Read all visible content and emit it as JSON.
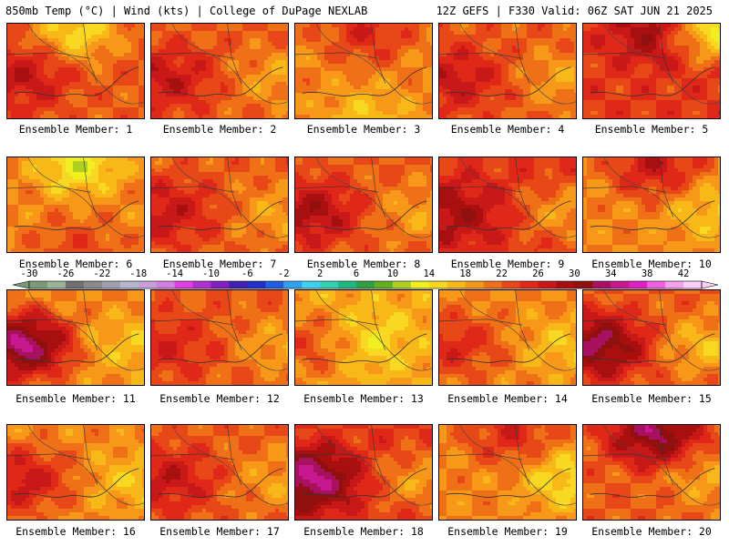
{
  "header": {
    "title_left": "850mb Temp (°C) | Wind (kts) | College of DuPage NEXLAB",
    "title_right": "12Z GEFS | F330 Valid: 06Z SAT JUN 21 2025"
  },
  "colorbar": {
    "tick_labels": [
      "-30",
      "-26",
      "-22",
      "-18",
      "-14",
      "-10",
      "-6",
      "-2",
      "2",
      "6",
      "10",
      "14",
      "18",
      "22",
      "26",
      "30",
      "34",
      "38",
      "42"
    ],
    "bins": [
      {
        "from": -30,
        "to": -28,
        "color": "#7a9a7a"
      },
      {
        "from": -28,
        "to": -26,
        "color": "#9ab39a"
      },
      {
        "from": -26,
        "to": -24,
        "color": "#707070"
      },
      {
        "from": -24,
        "to": -22,
        "color": "#8a8a8a"
      },
      {
        "from": -22,
        "to": -20,
        "color": "#a0a0b0"
      },
      {
        "from": -20,
        "to": -18,
        "color": "#b6b6cc"
      },
      {
        "from": -18,
        "to": -16,
        "color": "#c8a0d8"
      },
      {
        "from": -16,
        "to": -14,
        "color": "#d080e0"
      },
      {
        "from": -14,
        "to": -12,
        "color": "#e040e0"
      },
      {
        "from": -12,
        "to": -10,
        "color": "#b030d0"
      },
      {
        "from": -10,
        "to": -8,
        "color": "#8020c0"
      },
      {
        "from": -8,
        "to": -6,
        "color": "#4020b0"
      },
      {
        "from": -6,
        "to": -4,
        "color": "#2030c8"
      },
      {
        "from": -4,
        "to": -2,
        "color": "#2060e0"
      },
      {
        "from": -2,
        "to": 0,
        "color": "#30a0f0"
      },
      {
        "from": 0,
        "to": 2,
        "color": "#40d0f0"
      },
      {
        "from": 2,
        "to": 4,
        "color": "#30d0b0"
      },
      {
        "from": 4,
        "to": 6,
        "color": "#20b880"
      },
      {
        "from": 6,
        "to": 8,
        "color": "#30a040"
      },
      {
        "from": 8,
        "to": 10,
        "color": "#60b020"
      },
      {
        "from": 10,
        "to": 12,
        "color": "#b0d020"
      },
      {
        "from": 12,
        "to": 14,
        "color": "#f0f020"
      },
      {
        "from": 14,
        "to": 16,
        "color": "#f8d820"
      },
      {
        "from": 16,
        "to": 18,
        "color": "#f8b818"
      },
      {
        "from": 18,
        "to": 20,
        "color": "#f89818"
      },
      {
        "from": 20,
        "to": 22,
        "color": "#f07018"
      },
      {
        "from": 22,
        "to": 24,
        "color": "#e84818"
      },
      {
        "from": 24,
        "to": 26,
        "color": "#e02818"
      },
      {
        "from": 26,
        "to": 28,
        "color": "#c81818"
      },
      {
        "from": 28,
        "to": 30,
        "color": "#a81010"
      },
      {
        "from": 30,
        "to": 32,
        "color": "#901010"
      },
      {
        "from": 32,
        "to": 34,
        "color": "#a81060"
      },
      {
        "from": 34,
        "to": 36,
        "color": "#c81890"
      },
      {
        "from": 36,
        "to": 38,
        "color": "#e020c0"
      },
      {
        "from": 38,
        "to": 40,
        "color": "#f060e0"
      },
      {
        "from": 40,
        "to": 42,
        "color": "#f8a0f0"
      },
      {
        "from": 42,
        "to": 44,
        "color": "#fcd0f8"
      }
    ]
  },
  "chart_data": {
    "type": "heatmap",
    "variable": "850mb Temp (°C)",
    "overlay": "Wind (kts)",
    "model": "12Z GEFS",
    "forecast_hour": "F330",
    "valid": "06Z SAT JUN 21 2025",
    "colorbar_range": [
      -30,
      42
    ],
    "colorbar_tick_step": 4,
    "panels": [
      {
        "label": "Ensemble Member: 1",
        "dominant_temp_c": 22,
        "max_temp_c": 28,
        "min_temp_c": 14,
        "hot_region": "west",
        "cool_region": "north"
      },
      {
        "label": "Ensemble Member: 2",
        "dominant_temp_c": 22,
        "max_temp_c": 28,
        "min_temp_c": 18,
        "hot_region": "west",
        "cool_region": "east"
      },
      {
        "label": "Ensemble Member: 3",
        "dominant_temp_c": 20,
        "max_temp_c": 26,
        "min_temp_c": 16,
        "hot_region": "north",
        "cool_region": "south"
      },
      {
        "label": "Ensemble Member: 4",
        "dominant_temp_c": 22,
        "max_temp_c": 28,
        "min_temp_c": 18,
        "hot_region": "west",
        "cool_region": "east"
      },
      {
        "label": "Ensemble Member: 5",
        "dominant_temp_c": 24,
        "max_temp_c": 30,
        "min_temp_c": 12,
        "hot_region": "north",
        "cool_region": "northeast"
      },
      {
        "label": "Ensemble Member: 6",
        "dominant_temp_c": 20,
        "max_temp_c": 24,
        "min_temp_c": 12,
        "hot_region": "south",
        "cool_region": "north"
      },
      {
        "label": "Ensemble Member: 7",
        "dominant_temp_c": 22,
        "max_temp_c": 28,
        "min_temp_c": 18,
        "hot_region": "west",
        "cool_region": "east"
      },
      {
        "label": "Ensemble Member: 8",
        "dominant_temp_c": 22,
        "max_temp_c": 30,
        "min_temp_c": 18,
        "hot_region": "west",
        "cool_region": "east"
      },
      {
        "label": "Ensemble Member: 9",
        "dominant_temp_c": 24,
        "max_temp_c": 30,
        "min_temp_c": 18,
        "hot_region": "west",
        "cool_region": "east"
      },
      {
        "label": "Ensemble Member: 10",
        "dominant_temp_c": 20,
        "max_temp_c": 28,
        "min_temp_c": 16,
        "hot_region": "north",
        "cool_region": "east"
      },
      {
        "label": "Ensemble Member: 11",
        "dominant_temp_c": 20,
        "max_temp_c": 36,
        "min_temp_c": 16,
        "hot_region": "west",
        "cool_region": "east"
      },
      {
        "label": "Ensemble Member: 12",
        "dominant_temp_c": 22,
        "max_temp_c": 26,
        "min_temp_c": 18,
        "hot_region": "west",
        "cool_region": "east"
      },
      {
        "label": "Ensemble Member: 13",
        "dominant_temp_c": 18,
        "max_temp_c": 24,
        "min_temp_c": 14,
        "hot_region": "west",
        "cool_region": "center"
      },
      {
        "label": "Ensemble Member: 14",
        "dominant_temp_c": 20,
        "max_temp_c": 26,
        "min_temp_c": 16,
        "hot_region": "west",
        "cool_region": "east"
      },
      {
        "label": "Ensemble Member: 15",
        "dominant_temp_c": 22,
        "max_temp_c": 34,
        "min_temp_c": 16,
        "hot_region": "west",
        "cool_region": "east"
      },
      {
        "label": "Ensemble Member: 16",
        "dominant_temp_c": 20,
        "max_temp_c": 28,
        "min_temp_c": 16,
        "hot_region": "west",
        "cool_region": "east"
      },
      {
        "label": "Ensemble Member: 17",
        "dominant_temp_c": 22,
        "max_temp_c": 28,
        "min_temp_c": 18,
        "hot_region": "west",
        "cool_region": "east"
      },
      {
        "label": "Ensemble Member: 18",
        "dominant_temp_c": 24,
        "max_temp_c": 36,
        "min_temp_c": 18,
        "hot_region": "west",
        "cool_region": "east"
      },
      {
        "label": "Ensemble Member: 19",
        "dominant_temp_c": 20,
        "max_temp_c": 26,
        "min_temp_c": 14,
        "hot_region": "north",
        "cool_region": "east"
      },
      {
        "label": "Ensemble Member: 20",
        "dominant_temp_c": 22,
        "max_temp_c": 34,
        "min_temp_c": 18,
        "hot_region": "north",
        "cool_region": "east"
      }
    ]
  }
}
